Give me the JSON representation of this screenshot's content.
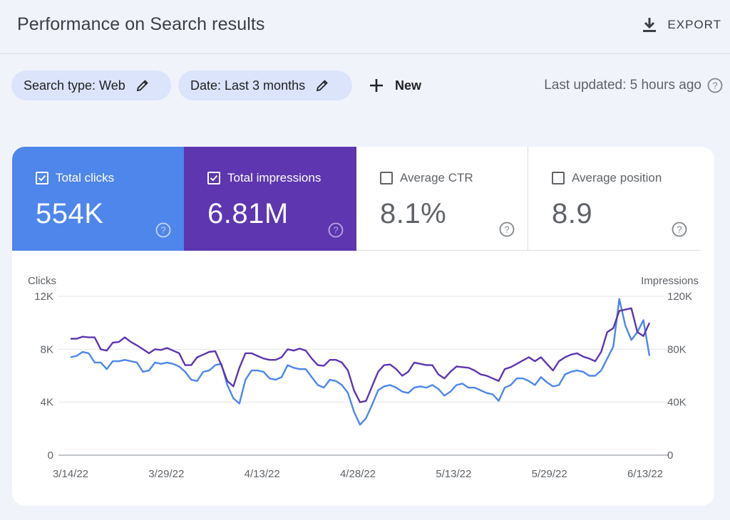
{
  "header": {
    "title": "Performance on Search results",
    "export_label": "EXPORT"
  },
  "filters": {
    "search_type": "Search type: Web",
    "date": "Date: Last 3 months",
    "new_label": "New",
    "last_updated": "Last updated: 5 hours ago"
  },
  "metrics": [
    {
      "label": "Total clicks",
      "value": "554K",
      "checked": true,
      "color": "#4e86eb"
    },
    {
      "label": "Total impressions",
      "value": "6.81M",
      "checked": true,
      "color": "#5d36b0"
    },
    {
      "label": "Average CTR",
      "value": "8.1%",
      "checked": false
    },
    {
      "label": "Average position",
      "value": "8.9",
      "checked": false
    }
  ],
  "chart_data": {
    "type": "line",
    "left_axis_label": "Clicks",
    "right_axis_label": "Impressions",
    "left_ticks": [
      "0",
      "4K",
      "8K",
      "12K"
    ],
    "right_ticks": [
      "0",
      "40K",
      "80K",
      "120K"
    ],
    "ylim_left": [
      0,
      12000
    ],
    "ylim_right": [
      0,
      120000
    ],
    "x_tick_labels": [
      "3/14/22",
      "3/29/22",
      "4/13/22",
      "4/28/22",
      "5/13/22",
      "5/29/22",
      "6/13/22"
    ],
    "x_start": "3/14/22",
    "x_end": "6/13/22",
    "grid": true,
    "series": [
      {
        "name": "Clicks",
        "axis": "left",
        "color": "#4e86eb",
        "values": [
          7400,
          7500,
          7800,
          7700,
          7000,
          7000,
          6500,
          7100,
          7100,
          7200,
          7100,
          7000,
          6300,
          6400,
          7000,
          6900,
          7000,
          6900,
          6700,
          6300,
          5700,
          5600,
          6300,
          6400,
          6800,
          6900,
          5300,
          4300,
          3900,
          5700,
          6400,
          6400,
          6300,
          5800,
          5700,
          5900,
          6800,
          6600,
          6500,
          6500,
          5900,
          5300,
          5100,
          5700,
          5600,
          5300,
          4700,
          3300,
          2300,
          2800,
          3800,
          4900,
          5200,
          5300,
          5100,
          4800,
          4700,
          5100,
          5200,
          5100,
          5300,
          5000,
          4500,
          4800,
          5300,
          5400,
          5100,
          5100,
          4900,
          4700,
          4600,
          4100,
          5100,
          5300,
          5800,
          5800,
          5600,
          5300,
          5900,
          5500,
          5200,
          5300,
          6100,
          6300,
          6400,
          6300,
          6000,
          6000,
          6400,
          7300,
          8200,
          11800,
          9800,
          8700,
          9300,
          10200,
          7500
        ]
      },
      {
        "name": "Impressions",
        "axis": "right",
        "color": "#5d36b0",
        "values": [
          88000,
          88000,
          89500,
          89000,
          89000,
          80000,
          79000,
          85000,
          85500,
          89000,
          85500,
          83000,
          80000,
          77000,
          80000,
          79500,
          81000,
          79000,
          77000,
          68000,
          68000,
          74000,
          76000,
          78000,
          78500,
          68000,
          56000,
          52000,
          66000,
          77000,
          77000,
          75000,
          73000,
          72000,
          72000,
          74000,
          80000,
          79000,
          80500,
          79000,
          73000,
          68000,
          67500,
          72000,
          72000,
          70000,
          64000,
          49000,
          40000,
          41000,
          52000,
          63000,
          68000,
          68500,
          65000,
          60000,
          63000,
          70000,
          69000,
          68000,
          68000,
          61000,
          58000,
          63000,
          67000,
          66500,
          66000,
          64000,
          61000,
          60000,
          58000,
          56000,
          65000,
          66500,
          69000,
          71500,
          74000,
          71000,
          74000,
          69000,
          64000,
          71000,
          74000,
          76000,
          77000,
          74500,
          73000,
          71000,
          78000,
          93000,
          96000,
          109000,
          110000,
          111000,
          93000,
          90000,
          100000
        ]
      }
    ]
  }
}
